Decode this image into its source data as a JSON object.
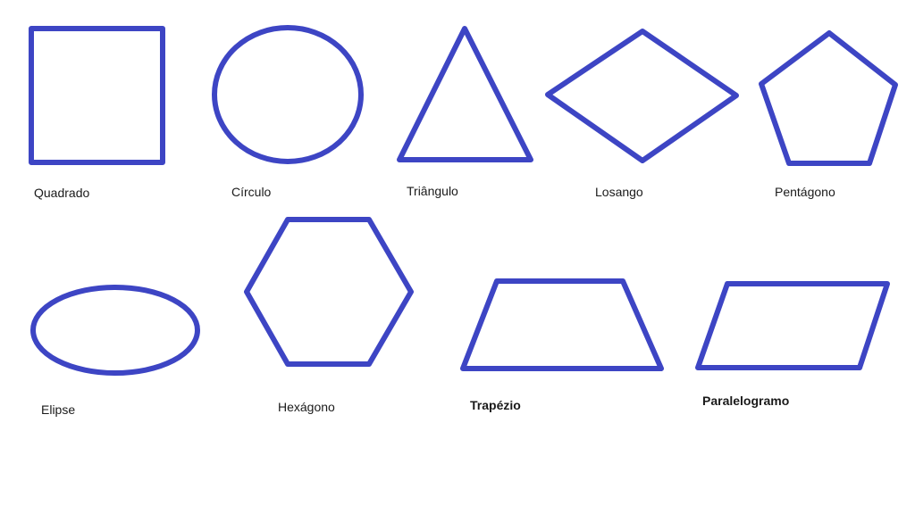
{
  "colors": {
    "shape_stroke": "#3d45c4",
    "label_text": "#1a1a1a",
    "background": "#ffffff"
  },
  "shapes": [
    {
      "key": "quadrado",
      "label": "Quadrado"
    },
    {
      "key": "circulo",
      "label": "Círculo"
    },
    {
      "key": "triangulo",
      "label": "Triângulo"
    },
    {
      "key": "losango",
      "label": "Losango"
    },
    {
      "key": "pentagono",
      "label": "Pentágono"
    },
    {
      "key": "elipse",
      "label": "Elipse"
    },
    {
      "key": "hexagono",
      "label": "Hexágono"
    },
    {
      "key": "trapezio",
      "label": "Trapézio"
    },
    {
      "key": "paralelogramo",
      "label": "Paralelogramo"
    }
  ]
}
